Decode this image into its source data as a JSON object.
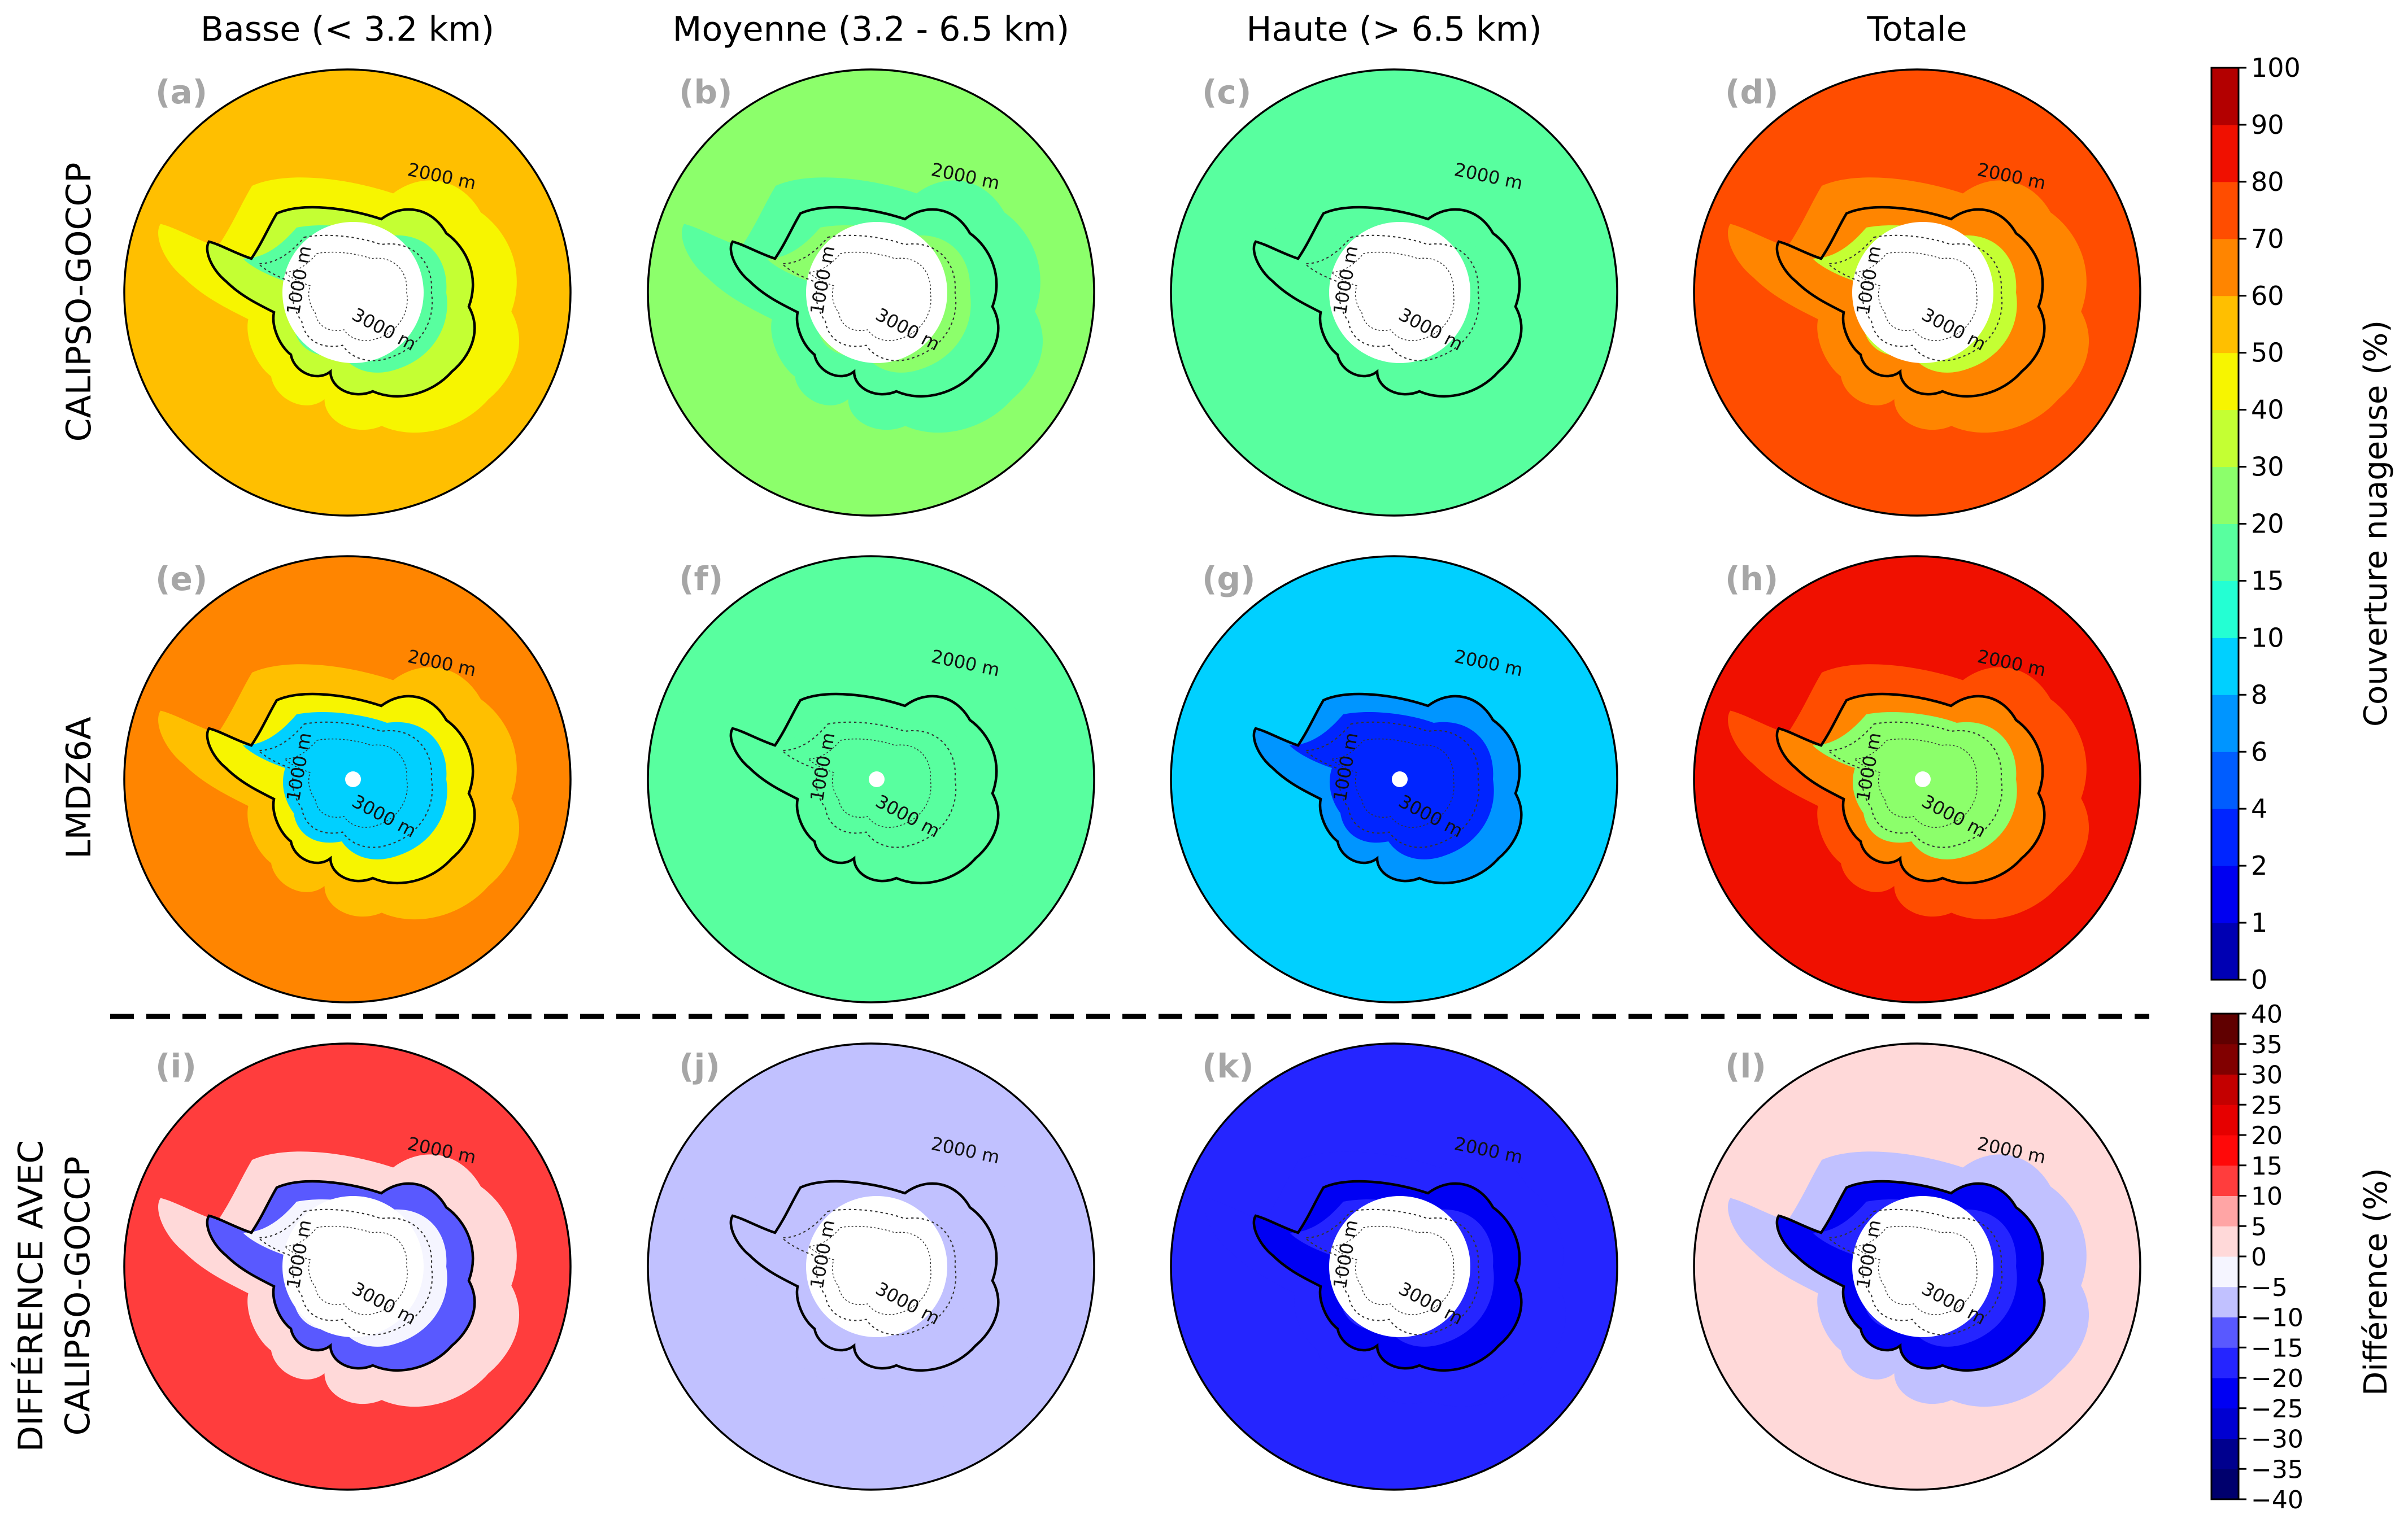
{
  "columns": [
    "Basse (< 3.2 km)",
    "Moyenne (3.2 - 6.5 km)",
    "Haute (> 6.5 km)",
    "Totale"
  ],
  "rows": [
    "CALIPSO-GOCCP",
    "LMDZ6A",
    "DIFFÉRENCE AVEC",
    "CALIPSO-GOCCP"
  ],
  "panel_letters": [
    "(a)",
    "(b)",
    "(c)",
    "(d)",
    "(e)",
    "(f)",
    "(g)",
    "(h)",
    "(i)",
    "(j)",
    "(k)",
    "(l)"
  ],
  "contour_labels": [
    "2000 m",
    "1000 m",
    "3000 m"
  ],
  "colors": {
    "panel_letter": "#a6a6a6",
    "cloud_scale": [
      "#000080",
      "#0000b3",
      "#0000f1",
      "#0025ff",
      "#005dff",
      "#0095ff",
      "#00d0ff",
      "#24ffd3",
      "#58ff9f",
      "#8cff6b",
      "#c4ff33",
      "#f7f500",
      "#ffbf00",
      "#ff8500",
      "#ff4d00",
      "#f01000",
      "#b30000",
      "#800000"
    ],
    "diff_scale": [
      "#00006d",
      "#00008e",
      "#0000b0",
      "#0000d1",
      "#0000f3",
      "#2525ff",
      "#5959ff",
      "#8d8dff",
      "#c1c1ff",
      "#f5f5ff",
      "#ffd9d9",
      "#ffa5a5",
      "#ff7171",
      "#ff3d3d",
      "#ff0909",
      "#e60000",
      "#c40000",
      "#a30000",
      "#810000",
      "#600000"
    ]
  },
  "chart_data": {
    "type": "heatmap",
    "projection": "south polar stereographic",
    "variable_groups": [
      "Basse (< 3.2 km)",
      "Moyenne (3.2 - 6.5 km)",
      "Haute (> 6.5 km)",
      "Totale"
    ],
    "datasets": [
      "CALIPSO-GOCCP",
      "LMDZ6A",
      "DIFFÉRENCE AVEC CALIPSO-GOCCP"
    ],
    "colorbar_cloud": {
      "label": "Couverture nuageuse (%)",
      "levels": [
        0,
        1,
        2,
        4,
        6,
        8,
        10,
        15,
        20,
        30,
        40,
        50,
        60,
        70,
        80,
        90,
        100
      ],
      "tick_labels": [
        "0",
        "1",
        "2",
        "4",
        "6",
        "8",
        "10",
        "15",
        "20",
        "30",
        "40",
        "50",
        "60",
        "70",
        "80",
        "90",
        "100"
      ]
    },
    "colorbar_diff": {
      "label": "Différence (%)",
      "levels": [
        -40,
        -35,
        -30,
        -25,
        -20,
        -15,
        -10,
        -5,
        0,
        5,
        10,
        15,
        20,
        25,
        30,
        35,
        40
      ],
      "tick_labels": [
        "−40",
        "−35",
        "−30",
        "−25",
        "−20",
        "−15",
        "−10",
        "−5",
        "0",
        "5",
        "10",
        "15",
        "20",
        "25",
        "30",
        "35",
        "40"
      ]
    },
    "panels": [
      {
        "id": "a",
        "dataset": "CALIPSO-GOCCP",
        "layer": "Basse (< 3.2 km)",
        "ocean": 60,
        "coast": 40,
        "interior": 20
      },
      {
        "id": "b",
        "dataset": "CALIPSO-GOCCP",
        "layer": "Moyenne (3.2 - 6.5 km)",
        "ocean": 30,
        "coast": 25,
        "interior": 30
      },
      {
        "id": "c",
        "dataset": "CALIPSO-GOCCP",
        "layer": "Haute (> 6.5 km)",
        "ocean": 25,
        "coast": 22,
        "interior": 20
      },
      {
        "id": "d",
        "dataset": "CALIPSO-GOCCP",
        "layer": "Totale",
        "ocean": 85,
        "coast": 70,
        "interior": 45
      },
      {
        "id": "e",
        "dataset": "LMDZ6A",
        "layer": "Basse (< 3.2 km)",
        "ocean": 75,
        "coast": 50,
        "interior": 12
      },
      {
        "id": "f",
        "dataset": "LMDZ6A",
        "layer": "Moyenne (3.2 - 6.5 km)",
        "ocean": 25,
        "coast": 22,
        "interior": 20
      },
      {
        "id": "g",
        "dataset": "LMDZ6A",
        "layer": "Haute (> 6.5 km)",
        "ocean": 12,
        "coast": 8,
        "interior": 5
      },
      {
        "id": "h",
        "dataset": "LMDZ6A",
        "layer": "Totale",
        "ocean": 95,
        "coast": 75,
        "interior": 35
      },
      {
        "id": "i",
        "dataset": "DIFFÉRENCE AVEC CALIPSO-GOCCP",
        "layer": "Basse (< 3.2 km)",
        "ocean": 12,
        "coast": -12,
        "interior": -5
      },
      {
        "id": "j",
        "dataset": "DIFFÉRENCE AVEC CALIPSO-GOCCP",
        "layer": "Moyenne (3.2 - 6.5 km)",
        "ocean": -7,
        "coast": -8,
        "interior": -7
      },
      {
        "id": "k",
        "dataset": "DIFFÉRENCE AVEC CALIPSO-GOCCP",
        "layer": "Haute (> 6.5 km)",
        "ocean": -18,
        "coast": -22,
        "interior": -20
      },
      {
        "id": "l",
        "dataset": "DIFFÉRENCE AVEC CALIPSO-GOCCP",
        "layer": "Totale",
        "ocean": 4,
        "coast": -22,
        "interior": -18
      }
    ]
  }
}
